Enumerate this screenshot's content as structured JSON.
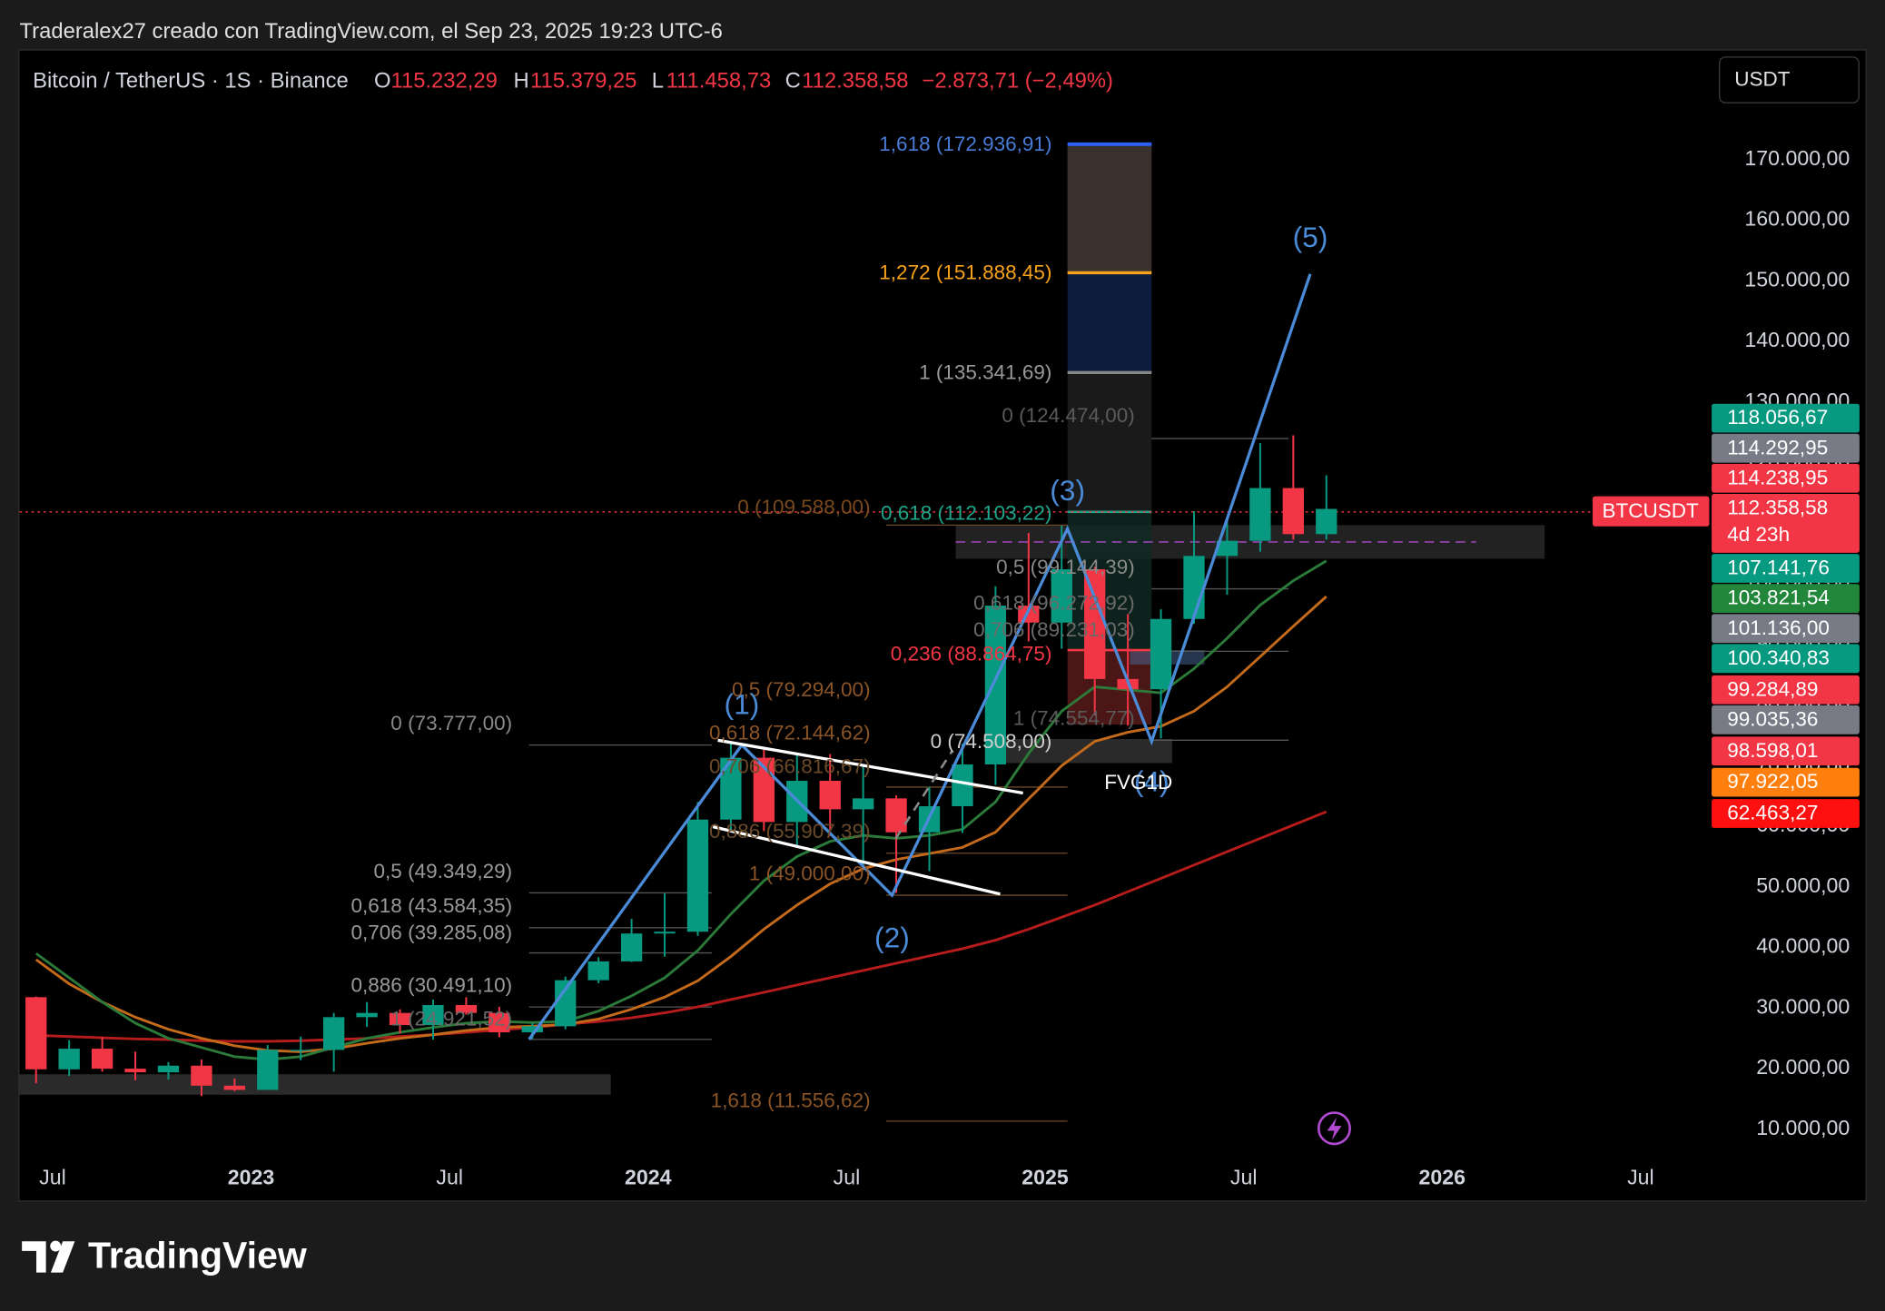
{
  "header": {
    "attribution": "Traderalex27 creado con TradingView.com, el Sep 23, 2025 19:23 UTC-6",
    "symbol": "Bitcoin / TetherUS · 1S · Binance",
    "o_label": "O",
    "o_value": "115.232,29",
    "h_label": "H",
    "h_value": "115.379,25",
    "l_label": "L",
    "l_value": "111.458,73",
    "c_label": "C",
    "c_value": "112.358,58",
    "change": "−2.873,71 (−2,49%)",
    "currency": "USDT"
  },
  "chart_data": {
    "type": "candlestick",
    "x": [
      "2022-06",
      "2022-07",
      "2022-08",
      "2022-09",
      "2022-10",
      "2022-11",
      "2022-12",
      "2023-01",
      "2023-02",
      "2023-03",
      "2023-04",
      "2023-05",
      "2023-06",
      "2023-07",
      "2023-08",
      "2023-09",
      "2023-10",
      "2023-11",
      "2023-12",
      "2024-01",
      "2024-02",
      "2024-03",
      "2024-04",
      "2024-05",
      "2024-06",
      "2024-07",
      "2024-08",
      "2024-09",
      "2024-10",
      "2024-11",
      "2024-12",
      "2025-01",
      "2025-02",
      "2025-03",
      "2025-04",
      "2025-05",
      "2025-06",
      "2025-07",
      "2025-08",
      "2025-09"
    ],
    "open": [
      31800,
      19900,
      23300,
      20000,
      19400,
      20500,
      17200,
      16500,
      23100,
      23100,
      28500,
      29200,
      27200,
      30500,
      29200,
      26000,
      27000,
      34600,
      37700,
      42300,
      42600,
      61100,
      71300,
      60700,
      67500,
      62800,
      64600,
      59000,
      63300,
      70200,
      96400,
      93600,
      102400,
      84300,
      82600,
      94200,
      104600,
      107100,
      115800,
      108200
    ],
    "high": [
      31900,
      24700,
      25200,
      22800,
      21100,
      21500,
      18400,
      23900,
      25300,
      29200,
      31000,
      29800,
      31400,
      31800,
      30200,
      27500,
      35200,
      38400,
      44700,
      48900,
      64000,
      73800,
      72800,
      71900,
      71900,
      70000,
      65100,
      66500,
      73600,
      99600,
      108400,
      109600,
      102800,
      95000,
      95800,
      112000,
      110500,
      123200,
      124500,
      117900
    ],
    "low": [
      17600,
      18800,
      19500,
      18100,
      18200,
      15500,
      16300,
      16500,
      21400,
      19500,
      26900,
      25800,
      24800,
      28900,
      25200,
      24900,
      26500,
      34100,
      37600,
      38500,
      41900,
      59000,
      59200,
      56600,
      58400,
      53500,
      49000,
      52600,
      58900,
      66800,
      90500,
      89300,
      78300,
      76600,
      74500,
      93400,
      98200,
      105300,
      107300,
      107300
    ],
    "close": [
      19900,
      23300,
      20000,
      19400,
      20500,
      17200,
      16500,
      23100,
      23100,
      28500,
      29200,
      27200,
      30500,
      29200,
      26000,
      27000,
      34600,
      37700,
      42300,
      42600,
      61100,
      71300,
      60700,
      67500,
      62800,
      64600,
      59000,
      63300,
      70200,
      96400,
      93600,
      102400,
      84300,
      82600,
      94200,
      104600,
      107100,
      115800,
      108200,
      112358.58
    ],
    "up_color": "#089981",
    "down_color": "#f23645",
    "lines": [
      {
        "color": "#b71c1c",
        "values": [
          25500,
          25300,
          25100,
          24900,
          24800,
          24600,
          24500,
          24500,
          24600,
          24800,
          25000,
          25300,
          25600,
          26000,
          26400,
          26800,
          27300,
          27800,
          28400,
          29200,
          30200,
          31400,
          32600,
          33800,
          35000,
          36200,
          37400,
          38600,
          39800,
          41200,
          43000,
          45000,
          47000,
          49200,
          51400,
          53600,
          55800,
          58000,
          60200,
          62400
        ]
      },
      {
        "color": "#c46a1a",
        "values": [
          38000,
          34000,
          31000,
          28500,
          26500,
          25000,
          23800,
          23000,
          22800,
          23300,
          24200,
          25000,
          25600,
          26300,
          26800,
          27000,
          27300,
          28200,
          29800,
          31800,
          34500,
          38500,
          43000,
          47000,
          50500,
          53000,
          54500,
          55500,
          56500,
          59000,
          64500,
          70000,
          74000,
          75500,
          76500,
          79000,
          83000,
          88000,
          93000,
          97900
        ]
      },
      {
        "color": "#2b7a3a",
        "values": [
          39000,
          35000,
          31000,
          27500,
          25000,
          23500,
          22000,
          21500,
          22000,
          23500,
          25000,
          26000,
          26800,
          27500,
          27800,
          27600,
          27800,
          29500,
          32000,
          35000,
          39500,
          45500,
          51000,
          55000,
          57500,
          58500,
          58000,
          58500,
          59500,
          64000,
          72000,
          79000,
          83000,
          82500,
          82000,
          86000,
          91000,
          96500,
          100500,
          103800
        ]
      }
    ],
    "xlim": [
      "2022-06",
      "2026-09"
    ],
    "xticks": [
      {
        "value": "2022-07",
        "label": "Jul"
      },
      {
        "value": "2023-01",
        "label": "2023"
      },
      {
        "value": "2023-07",
        "label": "Jul"
      },
      {
        "value": "2024-01",
        "label": "2024"
      },
      {
        "value": "2024-07",
        "label": "Jul"
      },
      {
        "value": "2025-01",
        "label": "2025"
      },
      {
        "value": "2025-07",
        "label": "Jul"
      },
      {
        "value": "2026-01",
        "label": "2026"
      },
      {
        "value": "2026-07",
        "label": "Jul"
      }
    ],
    "ylim": [
      5000,
      188000
    ],
    "yticks": [
      {
        "value": 10000,
        "label": "10.000,00"
      },
      {
        "value": 20000,
        "label": "20.000,00"
      },
      {
        "value": 30000,
        "label": "30.000,00"
      },
      {
        "value": 40000,
        "label": "40.000,00"
      },
      {
        "value": 50000,
        "label": "50.000,00"
      },
      {
        "value": 60000,
        "label": "60.000,00"
      },
      {
        "value": 70000,
        "label": "70.000,00"
      },
      {
        "value": 80000,
        "label": "80.000,00"
      },
      {
        "value": 90000,
        "label": "90.000,00"
      },
      {
        "value": 100000,
        "label": "100.000,00"
      },
      {
        "value": 110000,
        "label": "110.000,00"
      },
      {
        "value": 120000,
        "label": "120.000,00"
      },
      {
        "value": 130000,
        "label": "130.000,00"
      },
      {
        "value": 140000,
        "label": "140.000,00"
      },
      {
        "value": 150000,
        "label": "150.000,00"
      },
      {
        "value": 160000,
        "label": "160.000,00"
      },
      {
        "value": 170000,
        "label": "170.000,00"
      }
    ]
  },
  "annotations": {
    "fib": [
      "1,618 (172.936,91)",
      "1,272 (151.888,45)",
      "1 (135.341,69)",
      "0 (124.474,00)",
      "0 (109.588,00)",
      "0,618 (112.103,22)",
      "0,5 (99.144,39)",
      "0,618 (96.272,92)",
      "0,706 (89.231,03)",
      "0,236 (88.864,75)",
      "0,5 (79.294,00)",
      "1 (74.554,77)",
      "0 (73.777,00)",
      "0,618 (72.144,62)",
      "0 (74.508,00)",
      "0,706 (66.816,67)",
      "0,886 (55.907,39)",
      "1 (49.000,00)",
      "0,5 (49.349,29)",
      "0,618 (43.584,35)",
      "0,706 (39.285,08)",
      "0,886 (30.491,10)",
      "1 (24.921,52)",
      "1,618 (11.556,62)"
    ],
    "waves": [
      "(1)",
      "(2)",
      "(3)",
      "(4)",
      "(5)"
    ],
    "fvg": "FVG1D",
    "symbol_badge": "BTCUSDT",
    "countdown": "4d 23h"
  },
  "price_badges": [
    {
      "text": "118.056,67",
      "color": "#089981"
    },
    {
      "text": "114.292,95",
      "color": "#787b86"
    },
    {
      "text": "114.238,95",
      "color": "#f23645"
    },
    {
      "text": "112.358,58",
      "color": "#f23645"
    },
    {
      "text": "107.141,76",
      "color": "#089981"
    },
    {
      "text": "103.821,54",
      "color": "#22873b"
    },
    {
      "text": "101.136,00",
      "color": "#787b86"
    },
    {
      "text": "100.340,83",
      "color": "#089981"
    },
    {
      "text": "99.284,89",
      "color": "#f23645"
    },
    {
      "text": "99.035,36",
      "color": "#787b86"
    },
    {
      "text": "98.598,01",
      "color": "#f23645"
    },
    {
      "text": "97.922,05",
      "color": "#ff7f0e"
    },
    {
      "text": "62.463,27",
      "color": "#ff1010"
    }
  ],
  "footer": {
    "brand": "TradingView"
  }
}
